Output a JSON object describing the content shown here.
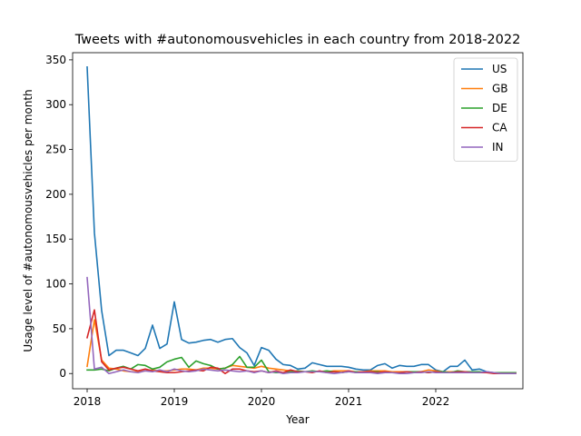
{
  "chart_data": {
    "type": "line",
    "title": "Tweets with #autonomousvehicles in each country from 2018-2022",
    "xlabel": "Year",
    "ylabel": "Usage level of #autonomousvehicles per month",
    "x_tick_labels": [
      "2018",
      "2019",
      "2020",
      "2021",
      "2022"
    ],
    "y_ticks": [
      0,
      50,
      100,
      150,
      200,
      250,
      300,
      350
    ],
    "xlim": [
      "2017-11",
      "2023-01"
    ],
    "ylim": [
      -17,
      358
    ],
    "legend_position": "top-right",
    "grid": false,
    "x": [
      "2018-01",
      "2018-02",
      "2018-03",
      "2018-04",
      "2018-05",
      "2018-06",
      "2018-07",
      "2018-08",
      "2018-09",
      "2018-10",
      "2018-11",
      "2018-12",
      "2019-01",
      "2019-02",
      "2019-03",
      "2019-04",
      "2019-05",
      "2019-06",
      "2019-07",
      "2019-08",
      "2019-09",
      "2019-10",
      "2019-11",
      "2019-12",
      "2020-01",
      "2020-02",
      "2020-03",
      "2020-04",
      "2020-05",
      "2020-06",
      "2020-07",
      "2020-08",
      "2020-09",
      "2020-10",
      "2020-11",
      "2020-12",
      "2021-01",
      "2021-02",
      "2021-03",
      "2021-04",
      "2021-05",
      "2021-06",
      "2021-07",
      "2021-08",
      "2021-09",
      "2021-10",
      "2021-11",
      "2021-12",
      "2022-01",
      "2022-02",
      "2022-03",
      "2022-04",
      "2022-05",
      "2022-06",
      "2022-07",
      "2022-08",
      "2022-09",
      "2022-10",
      "2022-11",
      "2022-12"
    ],
    "series": [
      {
        "name": "US",
        "color": "#1f77b4",
        "values": [
          342,
          157,
          70,
          20,
          26,
          26,
          23,
          20,
          28,
          54,
          28,
          33,
          80,
          38,
          34,
          35,
          37,
          38,
          35,
          38,
          39,
          29,
          23,
          9,
          29,
          26,
          16,
          10,
          9,
          5,
          6,
          12,
          10,
          8,
          8,
          8,
          7,
          5,
          4,
          4,
          9,
          11,
          6,
          9,
          8,
          8,
          10,
          10,
          4,
          2,
          8,
          8,
          15,
          4,
          5,
          2,
          1,
          1,
          1,
          1
        ]
      },
      {
        "name": "GB",
        "color": "#ff7f0e",
        "values": [
          8,
          60,
          15,
          6,
          5,
          3,
          2,
          2,
          3,
          4,
          3,
          3,
          4,
          5,
          5,
          4,
          6,
          6,
          5,
          6,
          9,
          8,
          7,
          6,
          8,
          6,
          5,
          4,
          3,
          2,
          2,
          2,
          2,
          2,
          3,
          3,
          3,
          2,
          2,
          3,
          3,
          3,
          2,
          2,
          2,
          2,
          2,
          4,
          3,
          2,
          2,
          2,
          1,
          1,
          1,
          1,
          1,
          1,
          1,
          1
        ]
      },
      {
        "name": "DE",
        "color": "#2ca02c",
        "values": [
          4,
          4,
          5,
          3,
          6,
          8,
          5,
          10,
          9,
          5,
          7,
          13,
          16,
          18,
          7,
          14,
          11,
          9,
          5,
          6,
          10,
          19,
          7,
          7,
          15,
          2,
          1,
          1,
          2,
          3,
          2,
          3,
          2,
          3,
          2,
          1,
          2,
          2,
          1,
          2,
          2,
          1,
          1,
          1,
          2,
          2,
          2,
          1,
          2,
          2,
          1,
          3,
          2,
          2,
          2,
          1,
          1,
          1,
          1,
          1
        ]
      },
      {
        "name": "CA",
        "color": "#d62728",
        "values": [
          40,
          71,
          13,
          4,
          6,
          7,
          5,
          3,
          5,
          3,
          2,
          1,
          1,
          2,
          3,
          4,
          3,
          7,
          6,
          0,
          5,
          5,
          3,
          2,
          3,
          1,
          3,
          1,
          4,
          2,
          2,
          1,
          3,
          1,
          2,
          1,
          3,
          1,
          2,
          2,
          1,
          2,
          1,
          1,
          2,
          1,
          2,
          1,
          2,
          1,
          1,
          2,
          2,
          1,
          1,
          1,
          0,
          0,
          0,
          0
        ]
      },
      {
        "name": "IN",
        "color": "#9467bd",
        "values": [
          107,
          5,
          7,
          0,
          2,
          4,
          2,
          1,
          3,
          2,
          4,
          2,
          5,
          3,
          2,
          3,
          5,
          4,
          3,
          4,
          3,
          2,
          3,
          1,
          3,
          1,
          2,
          0,
          1,
          1,
          2,
          2,
          2,
          1,
          0,
          1,
          2,
          1,
          1,
          1,
          0,
          1,
          1,
          0,
          0,
          1,
          1,
          2,
          1,
          1,
          1,
          1,
          1,
          1,
          1,
          2,
          1,
          0,
          0,
          0
        ]
      }
    ]
  }
}
